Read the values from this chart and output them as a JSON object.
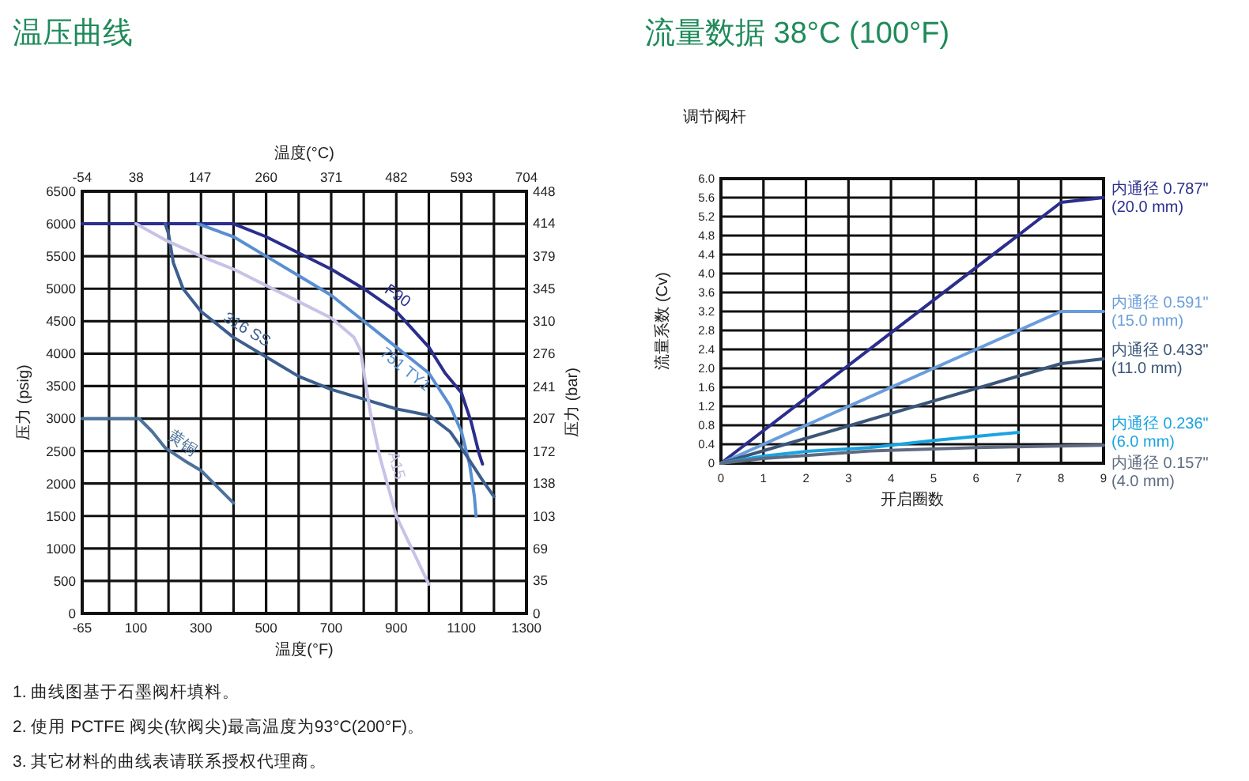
{
  "chart_data": [
    {
      "type": "line",
      "title": "温压曲线",
      "xlabel": "温度(°F)",
      "ylabel": "压力 (psig)",
      "x2label": "温度(°C)",
      "y2label": "压力 (bar)",
      "xlim": [
        -65,
        1300
      ],
      "xticks": [
        -65,
        {
          "value": 17.5,
          "label": null
        },
        100,
        {
          "value": 200,
          "label": null
        },
        300,
        {
          "value": 400,
          "label": null
        },
        500,
        {
          "value": 600,
          "label": null
        },
        700,
        {
          "value": 800,
          "label": null
        },
        900,
        {
          "value": 1000,
          "label": null
        },
        1100,
        {
          "value": 1200,
          "label": null
        },
        1300
      ],
      "ylim": [
        0,
        6500
      ],
      "yticks": [
        0,
        500,
        1000,
        1500,
        2000,
        2500,
        3000,
        3500,
        4000,
        4500,
        5000,
        5500,
        6000,
        6500
      ],
      "x2lim": [
        -54,
        704
      ],
      "x2ticks": [
        -54,
        38,
        147,
        260,
        371,
        482,
        593,
        704
      ],
      "y2lim": [
        0,
        448
      ],
      "y2ticks": [
        0,
        35,
        69,
        103,
        138,
        172,
        207,
        241,
        276,
        310,
        345,
        379,
        414,
        448
      ],
      "grid": true,
      "series": [
        {
          "name": "F90",
          "color": "#2b2e8c",
          "x": [
            -65,
            400,
            500,
            600,
            700,
            800,
            900,
            1000,
            1050,
            1100,
            1130,
            1155,
            1165
          ],
          "values": [
            6000,
            6000,
            5800,
            5550,
            5300,
            5000,
            4650,
            4100,
            3700,
            3400,
            2950,
            2450,
            2300
          ]
        },
        {
          "name": "751 TY1",
          "color": "#5a8fd2",
          "x": [
            290,
            400,
            500,
            600,
            700,
            800,
            900,
            1000,
            1065,
            1100,
            1125,
            1140,
            1145
          ],
          "values": [
            6000,
            5800,
            5500,
            5200,
            4900,
            4500,
            4100,
            3700,
            3200,
            2800,
            2300,
            1800,
            1500
          ]
        },
        {
          "name": "316 SS",
          "color": "#3d5f8e",
          "x": [
            190,
            200,
            215,
            245,
            300,
            400,
            500,
            600,
            700,
            800,
            900,
            1000,
            1065,
            1100,
            1165,
            1200
          ],
          "values": [
            6000,
            5850,
            5400,
            5000,
            4650,
            4250,
            3950,
            3650,
            3450,
            3300,
            3150,
            3050,
            2800,
            2550,
            2050,
            1800
          ]
        },
        {
          "name": "A15",
          "color": "#c6c3e6",
          "x": [
            100,
            190,
            300,
            400,
            500,
            600,
            700,
            770,
            790,
            820,
            850,
            900,
            1000
          ],
          "values": [
            6000,
            5750,
            5500,
            5300,
            5050,
            4800,
            4550,
            4250,
            4050,
            3100,
            2400,
            1500,
            450
          ]
        },
        {
          "name": "黄铜",
          "color": "#4d7299",
          "x": [
            -65,
            110,
            150,
            190,
            250,
            300,
            350,
            400
          ],
          "values": [
            3000,
            3000,
            2800,
            2550,
            2350,
            2200,
            1950,
            1700
          ]
        }
      ],
      "annotations": [
        "1. 曲线图基于石墨阀杆填料。",
        "2. 使用 PCTFE 阀尖(软阀尖)最高温度为93°C(200°F)。",
        "3. 其它材料的曲线表请联系授权代理商。"
      ]
    },
    {
      "type": "line",
      "title": "流量数据 38°C (100°F)",
      "subtitle": "调节阀杆",
      "xlabel": "开启圈数",
      "ylabel": "流量系数 (Cv)",
      "xlim": [
        0,
        9
      ],
      "xticks": [
        0,
        1,
        2,
        3,
        4,
        5,
        6,
        7,
        8,
        9
      ],
      "ylim": [
        0,
        6
      ],
      "yticks": [
        0,
        0.4,
        0.8,
        1.2,
        1.6,
        {
          "value": 2,
          "label": "2.0"
        },
        2.4,
        2.8,
        3.2,
        3.6,
        {
          "value": 4,
          "label": "4.0"
        },
        4.4,
        4.8,
        5.2,
        5.6,
        {
          "value": 6,
          "label": "6.0"
        }
      ],
      "grid": true,
      "series": [
        {
          "name": "内通径 0.787\" (20.0 mm)",
          "color": "#2b2e8c",
          "x": [
            0,
            8,
            9
          ],
          "values": [
            0,
            5.5,
            5.6
          ]
        },
        {
          "name": "内通径 0.591\" (15.0 mm)",
          "color": "#6a9ddb",
          "x": [
            0,
            8,
            9
          ],
          "values": [
            0,
            3.2,
            3.2
          ]
        },
        {
          "name": "内通径 0.433\" (11.0 mm)",
          "color": "#3b5678",
          "x": [
            0,
            8,
            9
          ],
          "values": [
            0,
            2.1,
            2.2
          ]
        },
        {
          "name": "内通径 0.236\" (6.0 mm)",
          "color": "#1aa3e0",
          "x": [
            0,
            1,
            2,
            3.5,
            5,
            7
          ],
          "values": [
            0,
            0.15,
            0.25,
            0.33,
            0.48,
            0.65
          ]
        },
        {
          "name": "内通径 0.157\" (4.0 mm)",
          "color": "#5f6b80",
          "x": [
            0,
            1,
            3.5,
            6,
            9
          ],
          "values": [
            0,
            0.1,
            0.26,
            0.33,
            0.38
          ]
        }
      ]
    }
  ]
}
